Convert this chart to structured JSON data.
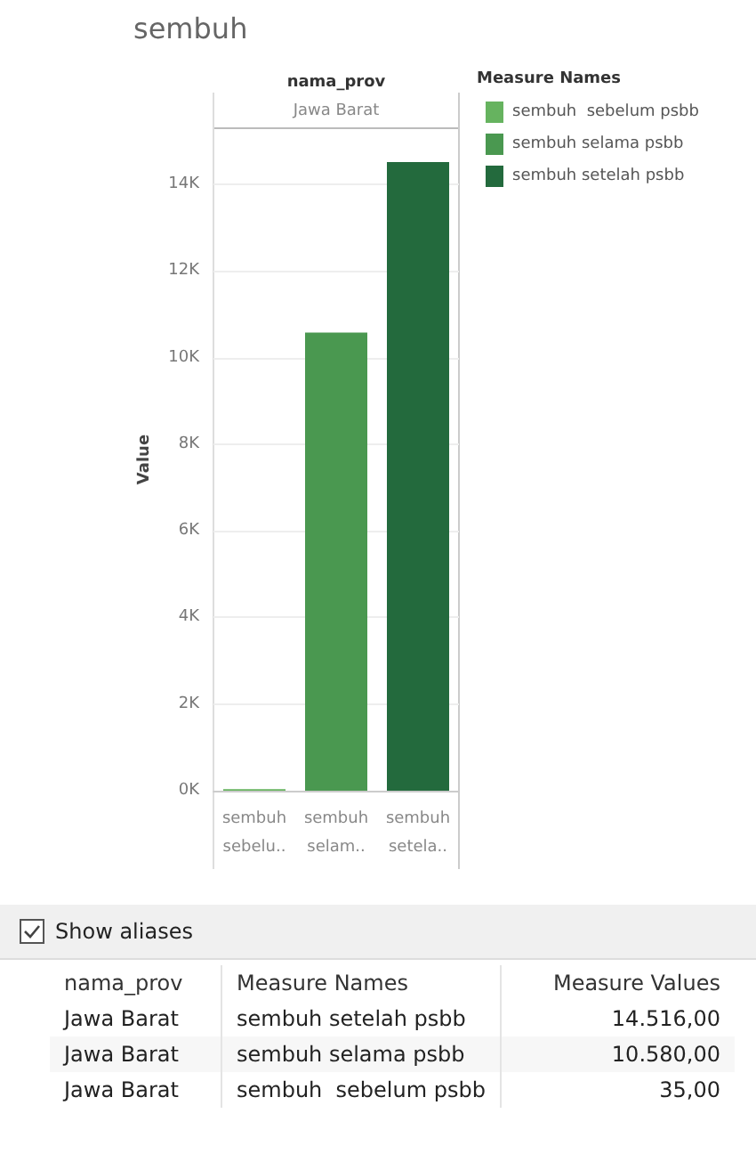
{
  "chart_data": {
    "type": "bar",
    "title": "sembuh",
    "ylabel": "Value",
    "legend_title": "Measure Names",
    "categories": [
      "sembuh sebelu..",
      "sembuh selam..",
      "sembuh setela.."
    ],
    "series": [
      {
        "name": "sembuh  sebelum psbb",
        "color": "#66b35f",
        "values": [
          35,
          null,
          null
        ]
      },
      {
        "name": "sembuh selama psbb",
        "color": "#4a9850",
        "values": [
          null,
          10580,
          null
        ]
      },
      {
        "name": "sembuh setelah psbb",
        "color": "#236a3d",
        "values": [
          null,
          null,
          14516
        ]
      }
    ],
    "ylim": [
      0,
      15300
    ],
    "yticks": [
      {
        "value": 0,
        "label": "0K"
      },
      {
        "value": 2000,
        "label": "2K"
      },
      {
        "value": 4000,
        "label": "4K"
      },
      {
        "value": 6000,
        "label": "6K"
      },
      {
        "value": 8000,
        "label": "8K"
      },
      {
        "value": 10000,
        "label": "10K"
      },
      {
        "value": 12000,
        "label": "12K"
      },
      {
        "value": 14000,
        "label": "14K"
      }
    ],
    "grid": "y",
    "legend": "right",
    "annotations": [
      "nama_prov",
      "Jawa Barat",
      "Show aliases",
      "nama_prov",
      "Measure Values",
      "14.516,00",
      "10.580,00",
      "35,00"
    ]
  }
}
